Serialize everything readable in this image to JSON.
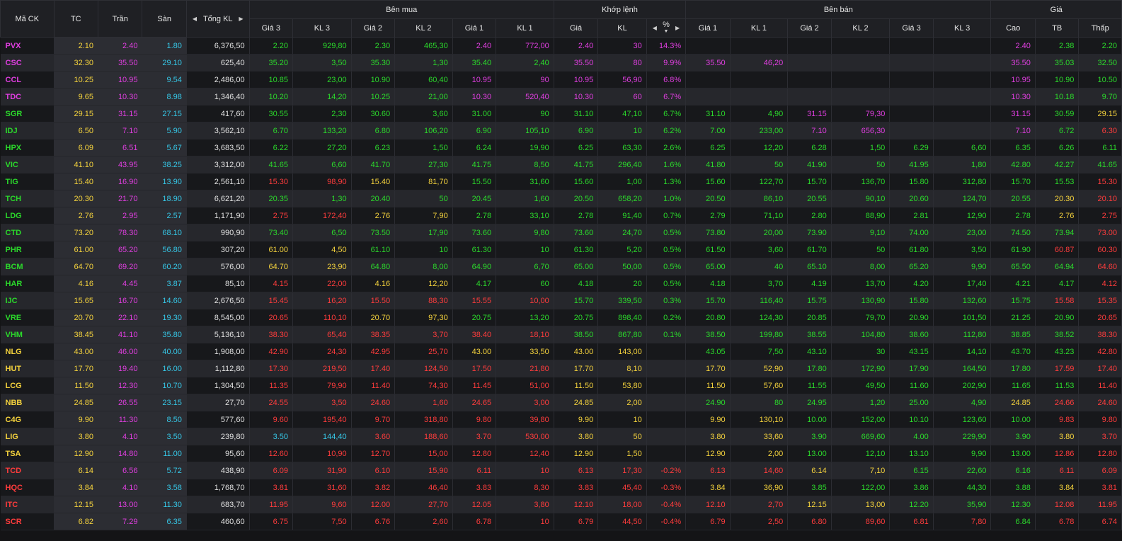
{
  "colors": {
    "up": "#2bd92b",
    "down": "#ff3c3c",
    "ref": "#f5d33d",
    "ceil": "#e03ee0",
    "floor": "#36c8e8",
    "neutral": "#e2e2e2"
  },
  "headers": {
    "symbol": "Mã CK",
    "tc": "TC",
    "tran": "Trần",
    "san": "Sàn",
    "total": "Tổng KL",
    "ben_mua": "Bên mua",
    "khop": "Khớp lệnh",
    "ben_ban": "Bên bán",
    "gia": "Giá",
    "bid": [
      "Giá 3",
      "KL 3",
      "Giá 2",
      "KL 2",
      "Giá 1",
      "KL 1"
    ],
    "match": [
      "Giá",
      "KL",
      "%"
    ],
    "ask": [
      "Giá 1",
      "KL 1",
      "Giá 2",
      "KL 2",
      "Giá 3",
      "KL 3"
    ],
    "stats": [
      "Cao",
      "TB",
      "Thấp"
    ]
  },
  "rows": [
    [
      "PVX",
      "2.10",
      "2.40",
      "1.80",
      "6,376,50",
      "2.20",
      "929,80",
      "2.30",
      "465,30",
      "2.40",
      "772,00",
      "2.40",
      "30",
      "14.3%",
      "",
      "",
      "",
      "",
      "",
      "",
      "2.40",
      "2.38",
      "2.20"
    ],
    [
      "CSC",
      "32.30",
      "35.50",
      "29.10",
      "625,40",
      "35.20",
      "3,50",
      "35.30",
      "1,30",
      "35.40",
      "2,40",
      "35.50",
      "80",
      "9.9%",
      "35.50",
      "46,20",
      "",
      "",
      "",
      "",
      "35.50",
      "35.03",
      "32.50"
    ],
    [
      "CCL",
      "10.25",
      "10.95",
      "9.54",
      "2,486,00",
      "10.85",
      "23,00",
      "10.90",
      "60,40",
      "10.95",
      "90",
      "10.95",
      "56,90",
      "6.8%",
      "",
      "",
      "",
      "",
      "",
      "",
      "10.95",
      "10.90",
      "10.50"
    ],
    [
      "TDC",
      "9.65",
      "10.30",
      "8.98",
      "1,346,40",
      "10.20",
      "14,20",
      "10.25",
      "21,00",
      "10.30",
      "520,40",
      "10.30",
      "60",
      "6.7%",
      "",
      "",
      "",
      "",
      "",
      "",
      "10.30",
      "10.18",
      "9.70"
    ],
    [
      "SGR",
      "29.15",
      "31.15",
      "27.15",
      "417,60",
      "30.55",
      "2,30",
      "30.60",
      "3,60",
      "31.00",
      "90",
      "31.10",
      "47,10",
      "6.7%",
      "31.10",
      "4,90",
      "31.15",
      "79,30",
      "",
      "",
      "31.15",
      "30.59",
      "29.15"
    ],
    [
      "IDJ",
      "6.50",
      "7.10",
      "5.90",
      "3,562,10",
      "6.70",
      "133,20",
      "6.80",
      "106,20",
      "6.90",
      "105,10",
      "6.90",
      "10",
      "6.2%",
      "7.00",
      "233,00",
      "7.10",
      "656,30",
      "",
      "",
      "7.10",
      "6.72",
      "6.30"
    ],
    [
      "HPX",
      "6.09",
      "6.51",
      "5.67",
      "3,683,50",
      "6.22",
      "27,20",
      "6.23",
      "1,50",
      "6.24",
      "19,90",
      "6.25",
      "63,30",
      "2.6%",
      "6.25",
      "12,20",
      "6.28",
      "1,50",
      "6.29",
      "6,60",
      "6.35",
      "6.26",
      "6.11"
    ],
    [
      "VIC",
      "41.10",
      "43.95",
      "38.25",
      "3,312,00",
      "41.65",
      "6,60",
      "41.70",
      "27,30",
      "41.75",
      "8,50",
      "41.75",
      "296,40",
      "1.6%",
      "41.80",
      "50",
      "41.90",
      "50",
      "41.95",
      "1,80",
      "42.80",
      "42.27",
      "41.65"
    ],
    [
      "TIG",
      "15.40",
      "16.90",
      "13.90",
      "2,561,10",
      "15.30",
      "98,90",
      "15.40",
      "81,70",
      "15.50",
      "31,60",
      "15.60",
      "1,00",
      "1.3%",
      "15.60",
      "122,70",
      "15.70",
      "136,70",
      "15.80",
      "312,80",
      "15.70",
      "15.53",
      "15.30"
    ],
    [
      "TCH",
      "20.30",
      "21.70",
      "18.90",
      "6,621,20",
      "20.35",
      "1,30",
      "20.40",
      "50",
      "20.45",
      "1,60",
      "20.50",
      "658,20",
      "1.0%",
      "20.50",
      "86,10",
      "20.55",
      "90,10",
      "20.60",
      "124,70",
      "20.55",
      "20.30",
      "20.10"
    ],
    [
      "LDG",
      "2.76",
      "2.95",
      "2.57",
      "1,171,90",
      "2.75",
      "172,40",
      "2.76",
      "7,90",
      "2.78",
      "33,10",
      "2.78",
      "91,40",
      "0.7%",
      "2.79",
      "71,10",
      "2.80",
      "88,90",
      "2.81",
      "12,90",
      "2.78",
      "2.76",
      "2.75"
    ],
    [
      "CTD",
      "73.20",
      "78.30",
      "68.10",
      "990,90",
      "73.40",
      "6,50",
      "73.50",
      "17,90",
      "73.60",
      "9,80",
      "73.60",
      "24,70",
      "0.5%",
      "73.80",
      "20,00",
      "73.90",
      "9,10",
      "74.00",
      "23,00",
      "74.50",
      "73.94",
      "73.00"
    ],
    [
      "PHR",
      "61.00",
      "65.20",
      "56.80",
      "307,20",
      "61.00",
      "4,50",
      "61.10",
      "10",
      "61.30",
      "10",
      "61.30",
      "5,20",
      "0.5%",
      "61.50",
      "3,60",
      "61.70",
      "50",
      "61.80",
      "3,50",
      "61.90",
      "60.87",
      "60.30"
    ],
    [
      "BCM",
      "64.70",
      "69.20",
      "60.20",
      "576,00",
      "64.70",
      "23,90",
      "64.80",
      "8,00",
      "64.90",
      "6,70",
      "65.00",
      "50,00",
      "0.5%",
      "65.00",
      "40",
      "65.10",
      "8,00",
      "65.20",
      "9,90",
      "65.50",
      "64.94",
      "64.60"
    ],
    [
      "HAR",
      "4.16",
      "4.45",
      "3.87",
      "85,10",
      "4.15",
      "22,00",
      "4.16",
      "12,20",
      "4.17",
      "60",
      "4.18",
      "20",
      "0.5%",
      "4.18",
      "3,70",
      "4.19",
      "13,70",
      "4.20",
      "17,40",
      "4.21",
      "4.17",
      "4.12"
    ],
    [
      "IJC",
      "15.65",
      "16.70",
      "14.60",
      "2,676,50",
      "15.45",
      "16,20",
      "15.50",
      "88,30",
      "15.55",
      "10,00",
      "15.70",
      "339,50",
      "0.3%",
      "15.70",
      "116,40",
      "15.75",
      "130,90",
      "15.80",
      "132,60",
      "15.75",
      "15.58",
      "15.35"
    ],
    [
      "VRE",
      "20.70",
      "22.10",
      "19.30",
      "8,545,00",
      "20.65",
      "110,10",
      "20.70",
      "97,30",
      "20.75",
      "13,20",
      "20.75",
      "898,40",
      "0.2%",
      "20.80",
      "124,30",
      "20.85",
      "79,70",
      "20.90",
      "101,50",
      "21.25",
      "20.90",
      "20.65"
    ],
    [
      "VHM",
      "38.45",
      "41.10",
      "35.80",
      "5,136,10",
      "38.30",
      "65,40",
      "38.35",
      "3,70",
      "38.40",
      "18,10",
      "38.50",
      "867,80",
      "0.1%",
      "38.50",
      "199,80",
      "38.55",
      "104,80",
      "38.60",
      "112,80",
      "38.85",
      "38.52",
      "38.30"
    ],
    [
      "NLG",
      "43.00",
      "46.00",
      "40.00",
      "1,908,00",
      "42.90",
      "24,30",
      "42.95",
      "25,70",
      "43.00",
      "33,50",
      "43.00",
      "143,00",
      "",
      "43.05",
      "7,50",
      "43.10",
      "30",
      "43.15",
      "14,10",
      "43.70",
      "43.23",
      "42.80"
    ],
    [
      "HUT",
      "17.70",
      "19.40",
      "16.00",
      "1,112,80",
      "17.30",
      "219,50",
      "17.40",
      "124,50",
      "17.50",
      "21,80",
      "17.70",
      "8,10",
      "",
      "17.70",
      "52,90",
      "17.80",
      "172,90",
      "17.90",
      "164,50",
      "17.80",
      "17.59",
      "17.40"
    ],
    [
      "LCG",
      "11.50",
      "12.30",
      "10.70",
      "1,304,50",
      "11.35",
      "79,90",
      "11.40",
      "74,30",
      "11.45",
      "51,00",
      "11.50",
      "53,80",
      "",
      "11.50",
      "57,60",
      "11.55",
      "49,50",
      "11.60",
      "202,90",
      "11.65",
      "11.53",
      "11.40"
    ],
    [
      "NBB",
      "24.85",
      "26.55",
      "23.15",
      "27,70",
      "24.55",
      "3,50",
      "24.60",
      "1,60",
      "24.65",
      "3,00",
      "24.85",
      "2,00",
      "",
      "24.90",
      "80",
      "24.95",
      "1,20",
      "25.00",
      "4,90",
      "24.85",
      "24.66",
      "24.60"
    ],
    [
      "C4G",
      "9.90",
      "11.30",
      "8.50",
      "577,60",
      "9.60",
      "195,40",
      "9.70",
      "318,80",
      "9.80",
      "39,80",
      "9.90",
      "10",
      "",
      "9.90",
      "130,10",
      "10.00",
      "152,00",
      "10.10",
      "123,60",
      "10.00",
      "9.83",
      "9.80"
    ],
    [
      "LIG",
      "3.80",
      "4.10",
      "3.50",
      "239,80",
      "3.50",
      "144,40",
      "3.60",
      "188,60",
      "3.70",
      "530,00",
      "3.80",
      "50",
      "",
      "3.80",
      "33,60",
      "3.90",
      "669,60",
      "4.00",
      "229,90",
      "3.90",
      "3.80",
      "3.70"
    ],
    [
      "TSA",
      "12.90",
      "14.80",
      "11.00",
      "95,60",
      "12.60",
      "10,90",
      "12.70",
      "15,00",
      "12.80",
      "12,40",
      "12.90",
      "1,50",
      "",
      "12.90",
      "2,00",
      "13.00",
      "12,10",
      "13.10",
      "9,90",
      "13.00",
      "12.86",
      "12.80"
    ],
    [
      "TCD",
      "6.14",
      "6.56",
      "5.72",
      "438,90",
      "6.09",
      "31,90",
      "6.10",
      "15,90",
      "6.11",
      "10",
      "6.13",
      "17,30",
      "-0.2%",
      "6.13",
      "14,60",
      "6.14",
      "7,10",
      "6.15",
      "22,60",
      "6.16",
      "6.11",
      "6.09"
    ],
    [
      "HQC",
      "3.84",
      "4.10",
      "3.58",
      "1,768,70",
      "3.81",
      "31,60",
      "3.82",
      "46,40",
      "3.83",
      "8,30",
      "3.83",
      "45,40",
      "-0.3%",
      "3.84",
      "36,90",
      "3.85",
      "122,00",
      "3.86",
      "44,30",
      "3.88",
      "3.84",
      "3.81"
    ],
    [
      "ITC",
      "12.15",
      "13.00",
      "11.30",
      "683,70",
      "11.95",
      "9,60",
      "12.00",
      "27,70",
      "12.05",
      "3,80",
      "12.10",
      "18,00",
      "-0.4%",
      "12.10",
      "2,70",
      "12.15",
      "13,00",
      "12.20",
      "35,90",
      "12.30",
      "12.08",
      "11.95"
    ],
    [
      "SCR",
      "6.82",
      "7.29",
      "6.35",
      "460,60",
      "6.75",
      "7,50",
      "6.76",
      "2,60",
      "6.78",
      "10",
      "6.79",
      "44,50",
      "-0.4%",
      "6.79",
      "2,50",
      "6.80",
      "89,60",
      "6.81",
      "7,80",
      "6.84",
      "6.78",
      "6.74"
    ]
  ]
}
